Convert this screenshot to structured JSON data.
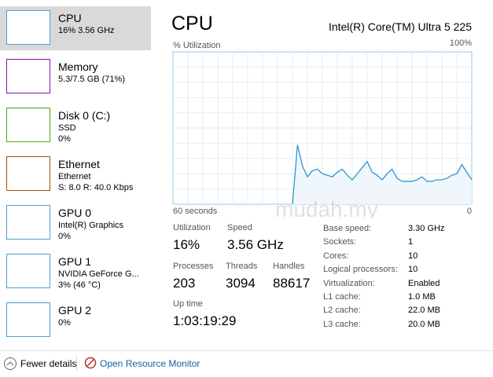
{
  "sidebar": {
    "items": [
      {
        "name": "CPU",
        "lines": [
          "16% 3.56 GHz"
        ]
      },
      {
        "name": "Memory",
        "lines": [
          "5.3/7.5 GB (71%)"
        ]
      },
      {
        "name": "Disk 0 (C:)",
        "lines": [
          "SSD",
          "0%"
        ]
      },
      {
        "name": "Ethernet",
        "lines": [
          "Ethernet",
          "S: 8.0  R: 40.0 Kbps"
        ]
      },
      {
        "name": "GPU 0",
        "lines": [
          "Intel(R) Graphics",
          "0%"
        ]
      },
      {
        "name": "GPU 1",
        "lines": [
          "NVIDIA GeForce G...",
          "3% (46 °C)"
        ]
      },
      {
        "name": "GPU 2",
        "lines": [
          "0%"
        ]
      }
    ]
  },
  "header": {
    "title": "CPU",
    "processor": "Intel(R) Core(TM) Ultra 5 225"
  },
  "chart_data": {
    "type": "area",
    "y_label": "% Utilization",
    "color": "#1f8fd0",
    "ylim": [
      0,
      100
    ],
    "yticks": [
      {
        "value": 100,
        "label": "100%"
      }
    ],
    "xlim": [
      60,
      0
    ],
    "xticks": [
      {
        "value": 60,
        "label": "60 seconds"
      },
      0
    ],
    "values": [
      null,
      null,
      null,
      null,
      null,
      null,
      null,
      null,
      null,
      null,
      null,
      null,
      null,
      null,
      null,
      null,
      null,
      null,
      null,
      null,
      null,
      null,
      null,
      null,
      0,
      39,
      25,
      18,
      22,
      23,
      20,
      19,
      18,
      21,
      23,
      19,
      16,
      20,
      24,
      28,
      21,
      19,
      16,
      20,
      23,
      17,
      15,
      15,
      15,
      16,
      18,
      15,
      15,
      16,
      16,
      17,
      19,
      20,
      26,
      21,
      16
    ]
  },
  "watermark": "mudah.my",
  "stats": [
    {
      "label": "Utilization",
      "value": "16%"
    },
    {
      "label": "Speed",
      "value": "3.56 GHz"
    },
    {
      "label": "Processes",
      "value": "203"
    },
    {
      "label": "Threads",
      "value": "3094"
    },
    {
      "label": "Handles",
      "value": "88617"
    },
    {
      "label": "Up time",
      "value": "1:03:19:29"
    }
  ],
  "details": [
    [
      "Base speed:",
      "3.30 GHz"
    ],
    [
      "Sockets:",
      "1"
    ],
    [
      "Cores:",
      "10"
    ],
    [
      "Logical processors:",
      "10"
    ],
    [
      "Virtualization:",
      "Enabled"
    ],
    [
      "L1 cache:",
      "1.0 MB"
    ],
    [
      "L2 cache:",
      "22.0 MB"
    ],
    [
      "L3 cache:",
      "20.0 MB"
    ]
  ],
  "footer": {
    "fewer": "Fewer details",
    "monitor": "Open Resource Monitor"
  }
}
